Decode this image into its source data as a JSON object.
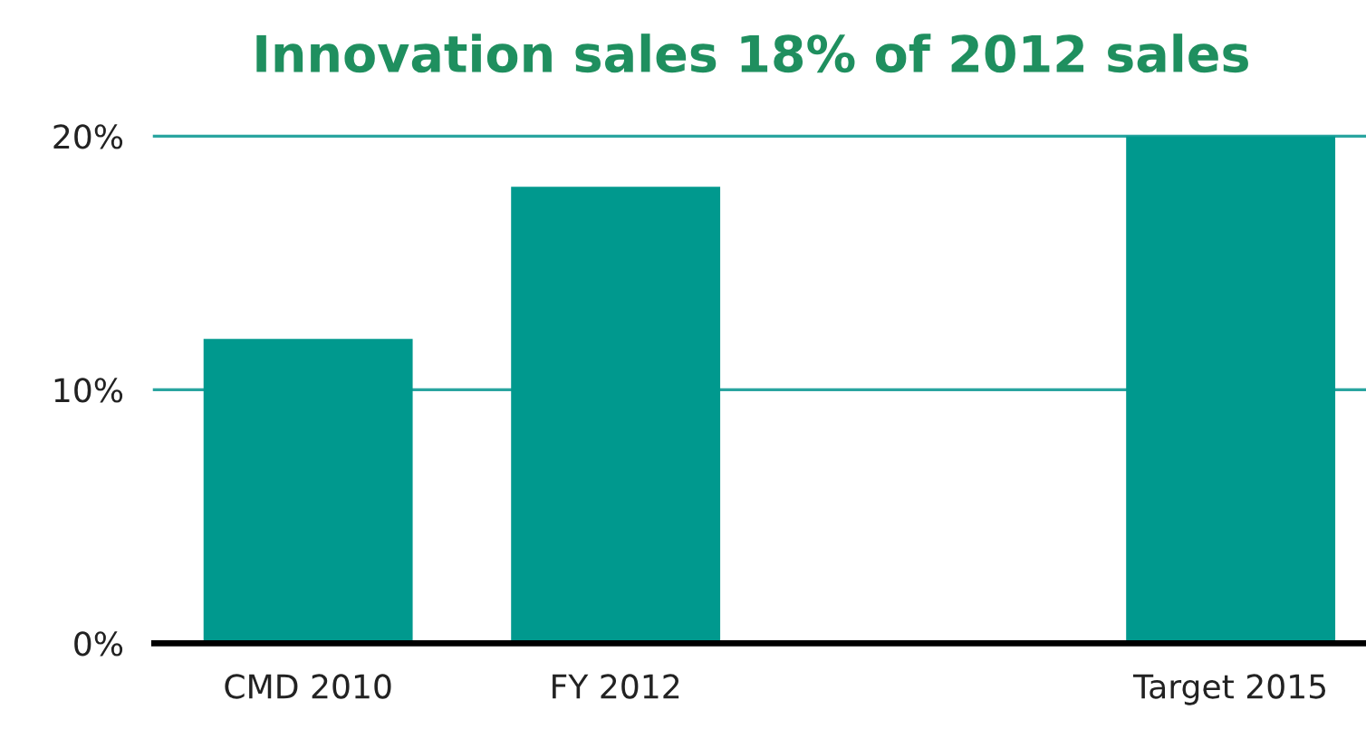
{
  "chart_data": {
    "type": "bar",
    "title": "Innovation sales 18% of 2012 sales",
    "categories": [
      "CMD 2010",
      "FY 2012",
      null,
      "Target 2015"
    ],
    "values": [
      12,
      18,
      null,
      20
    ],
    "color": "#00998e",
    "ylim": [
      0,
      20
    ],
    "yticks": [
      {
        "value": 0,
        "label": "0%"
      },
      {
        "value": 10,
        "label": "10%"
      },
      {
        "value": 20,
        "label": "20%"
      }
    ],
    "ref_lines": [
      {
        "axis": "y",
        "value": 10,
        "color": "#2aa5a0"
      },
      {
        "axis": "y",
        "value": 20,
        "color": "#2aa5a0"
      }
    ]
  }
}
